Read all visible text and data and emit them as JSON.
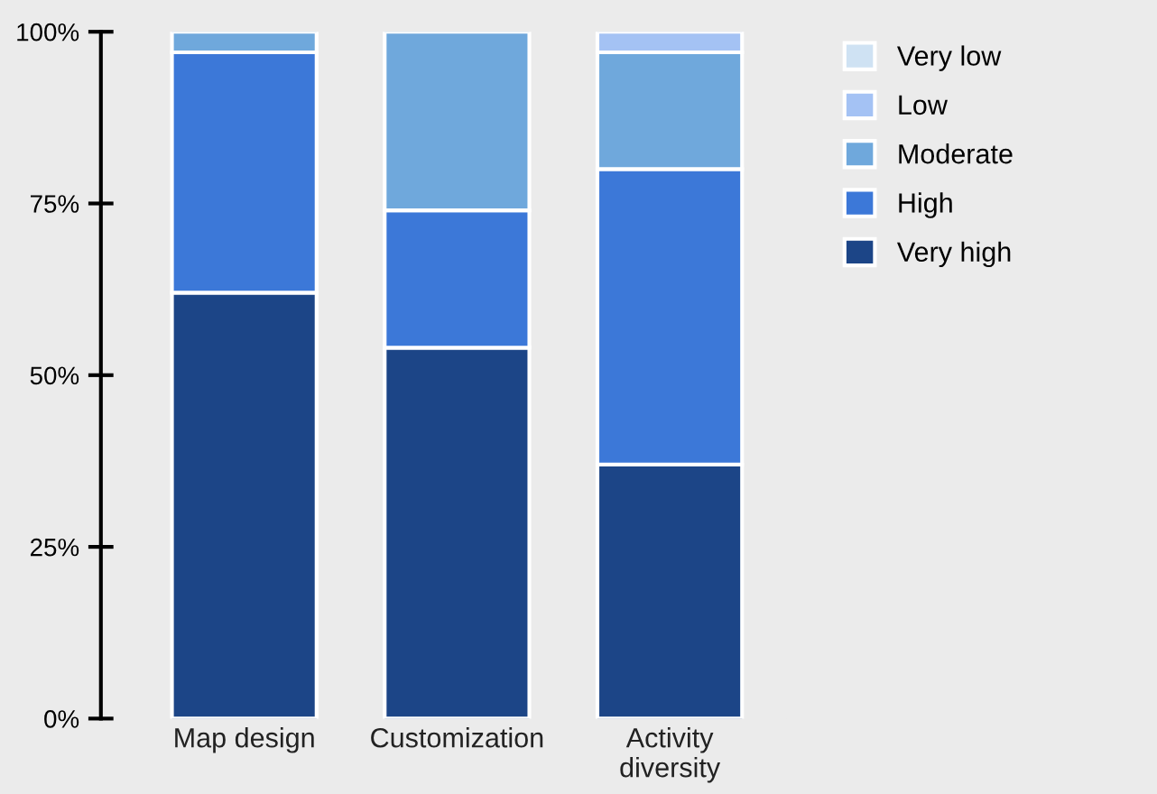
{
  "chart_data": {
    "type": "bar",
    "stacked": true,
    "categories": [
      "Map design",
      "Customization",
      "Activity\ndiversity"
    ],
    "series": [
      {
        "name": "Very high",
        "color": "#1c4587",
        "values": [
          62,
          54,
          37
        ]
      },
      {
        "name": "High",
        "color": "#3c78d8",
        "values": [
          35,
          20,
          43
        ]
      },
      {
        "name": "Moderate",
        "color": "#6fa8dc",
        "values": [
          3,
          26,
          17
        ]
      },
      {
        "name": "Low",
        "color": "#a4c2f4",
        "values": [
          null,
          null,
          3
        ]
      },
      {
        "name": "Very low",
        "color": "#cfe2f3",
        "values": [
          null,
          null,
          null
        ]
      }
    ],
    "ylim": [
      0,
      100
    ],
    "yticks": [
      {
        "value": 0,
        "label": "0%"
      },
      {
        "value": 25,
        "label": "25%"
      },
      {
        "value": 50,
        "label": "50%"
      },
      {
        "value": 75,
        "label": "75%"
      },
      {
        "value": 100,
        "label": "100%"
      }
    ],
    "grid": false,
    "legend": "top right"
  }
}
